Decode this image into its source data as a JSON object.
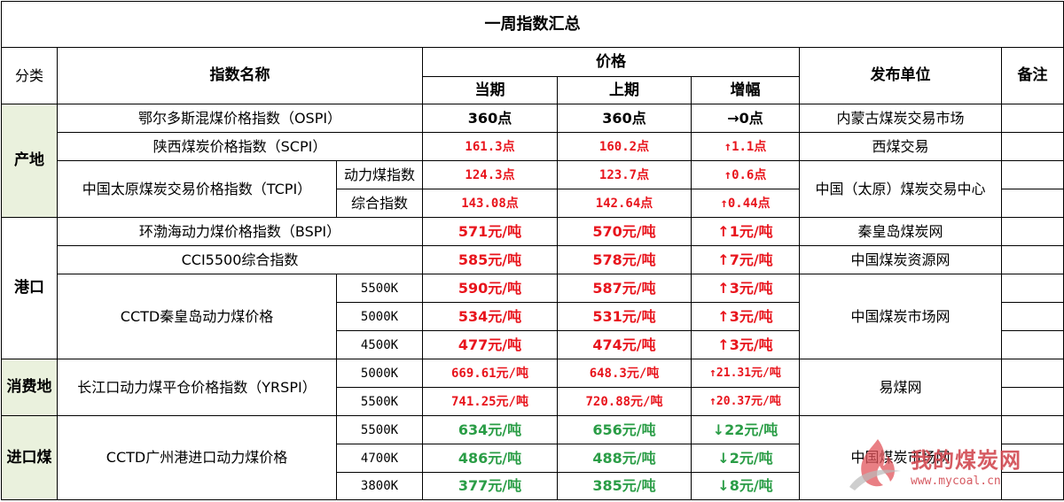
{
  "title": "一周指数汇总",
  "headers": {
    "category": "分类",
    "index_name": "指数名称",
    "price": "价格",
    "current": "当期",
    "previous": "上期",
    "change": "增幅",
    "publisher": "发布单位",
    "remark": "备注"
  },
  "groups": {
    "origin": "产地",
    "port": "港口",
    "consumption": "消费地",
    "import": "进口煤"
  },
  "rows": {
    "ospi": {
      "name": "鄂尔多斯混煤价格指数（OSPI）",
      "current": "360点",
      "previous": "360点",
      "change": "→0点",
      "publisher": "内蒙古煤炭交易市场"
    },
    "scpi": {
      "name": "陕西煤炭价格指数（SCPI）",
      "current": "161.3点",
      "previous": "160.2点",
      "change": "↑1.1点",
      "publisher": "西煤交易"
    },
    "tcpi": {
      "name": "中国太原煤炭交易价格指数（TCPI）",
      "publisher": "中国（太原）煤炭交易中心",
      "sub1": {
        "label": "动力煤指数",
        "current": "124.3点",
        "previous": "123.7点",
        "change": "↑0.6点"
      },
      "sub2": {
        "label": "综合指数",
        "current": "143.08点",
        "previous": "142.64点",
        "change": "↑0.44点"
      }
    },
    "bspi": {
      "name": "环渤海动力煤价格指数（BSPI）",
      "current": "571元/吨",
      "previous": "570元/吨",
      "change": "↑1元/吨",
      "publisher": "秦皇岛煤炭网"
    },
    "cci": {
      "name": "CCI5500综合指数",
      "current": "585元/吨",
      "previous": "578元/吨",
      "change": "↑7元/吨",
      "publisher": "中国煤炭资源网"
    },
    "cctd_qhd": {
      "name": "CCTD秦皇岛动力煤价格",
      "publisher": "中国煤炭市场网",
      "sub1": {
        "label": "5500K",
        "current": "590元/吨",
        "previous": "587元/吨",
        "change": "↑3元/吨"
      },
      "sub2": {
        "label": "5000K",
        "current": "534元/吨",
        "previous": "531元/吨",
        "change": "↑3元/吨"
      },
      "sub3": {
        "label": "4500K",
        "current": "477元/吨",
        "previous": "474元/吨",
        "change": "↑3元/吨"
      }
    },
    "yrspi": {
      "name": "长江口动力煤平仓价格指数（YRSPI）",
      "publisher": "易煤网",
      "sub1": {
        "label": "5000K",
        "current": "669.61元/吨",
        "previous": "648.3元/吨",
        "change": "↑21.31元/吨"
      },
      "sub2": {
        "label": "5500K",
        "current": "741.25元/吨",
        "previous": "720.88元/吨",
        "change": "↑20.37元/吨"
      }
    },
    "cctd_gz": {
      "name": "CCTD广州港进口动力煤价格",
      "publisher": "中国煤炭市场网",
      "sub1": {
        "label": "5500K",
        "current": "634元/吨",
        "previous": "656元/吨",
        "change": "↓22元/吨"
      },
      "sub2": {
        "label": "4700K",
        "current": "486元/吨",
        "previous": "488元/吨",
        "change": "↓2元/吨"
      },
      "sub3": {
        "label": "3800K",
        "current": "377元/吨",
        "previous": "385元/吨",
        "change": "↓8元/吨"
      }
    }
  },
  "watermark": {
    "text": "我的煤炭网",
    "url": "www.mycoal.cn"
  },
  "colors": {
    "rise": "#e8141c",
    "fall": "#2a9d46",
    "category_bg": "#eaf1dd"
  }
}
